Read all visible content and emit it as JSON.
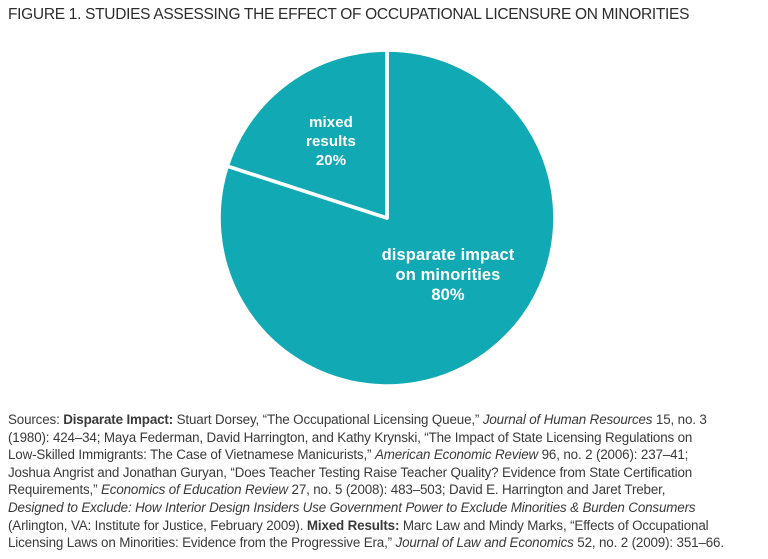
{
  "figure": {
    "title": "FIGURE 1. STUDIES ASSESSING THE EFFECT OF OCCUPATIONAL LICENSURE ON MINORITIES"
  },
  "chart_data": {
    "type": "pie",
    "title": "FIGURE 1. STUDIES ASSESSING THE EFFECT OF OCCUPATIONAL LICENSURE ON MINORITIES",
    "units": "percent of studies",
    "start_angle_deg_from_top": 0,
    "direction": "clockwise",
    "legend": "none",
    "data_labels_position": "inside",
    "data_label_color": "#ffffff",
    "divider_color": "#ffffff",
    "divider_width": 3.6,
    "radius_px": 168,
    "slices": [
      {
        "label": "disparate impact on minorities",
        "value": 80,
        "percent_label": "80%",
        "label_lines": [
          "disparate impact",
          "on minorities",
          "80%"
        ],
        "color": "#11aab4"
      },
      {
        "label": "mixed results",
        "value": 20,
        "percent_label": "20%",
        "label_lines": [
          "mixed",
          "results",
          "20%"
        ],
        "color": "#11aab4"
      }
    ]
  },
  "sources": {
    "lines": [
      [
        {
          "t": "Sources: "
        },
        {
          "t": "Disparate Impact:",
          "b": true
        },
        {
          "t": " Stuart Dorsey, “The Occupational Licensing Queue,” "
        },
        {
          "t": "Journal of Human Resources",
          "i": true
        },
        {
          "t": " 15, no. 3"
        }
      ],
      [
        {
          "t": "(1980): 424–34; Maya Federman, David Harrington, and Kathy Krynski, “The Impact of State Licensing Regulations on"
        }
      ],
      [
        {
          "t": "Low-Skilled Immigrants: The Case of Vietnamese Manicurists,” "
        },
        {
          "t": "American Economic Review",
          "i": true
        },
        {
          "t": " 96, no. 2 (2006): 237–41;"
        }
      ],
      [
        {
          "t": "Joshua Angrist and Jonathan Guryan, “Does Teacher Testing Raise Teacher Quality? Evidence from State Certification"
        }
      ],
      [
        {
          "t": "Requirements,” "
        },
        {
          "t": "Economics of Education Review",
          "i": true
        },
        {
          "t": " 27, no. 5 (2008): 483–503; David E. Harrington and Jaret Treber,"
        }
      ],
      [
        {
          "t": "Designed to Exclude: How Interior Design Insiders Use Government Power to Exclude Minorities & Burden Consumers",
          "i": true
        }
      ],
      [
        {
          "t": "(Arlington, VA: Institute for Justice, February 2009). "
        },
        {
          "t": "Mixed Results:",
          "b": true
        },
        {
          "t": " Marc Law and Mindy Marks, “Effects of Occupational"
        }
      ],
      [
        {
          "t": "Licensing Laws on Minorities: Evidence from the Progressive Era,” "
        },
        {
          "t": "Journal of Law and Economics",
          "i": true
        },
        {
          "t": " 52, no. 2 (2009): 351–66."
        }
      ]
    ]
  },
  "colors": {
    "background": "#ffffff",
    "title_text": "#2d2d2d",
    "body_text": "#3a3a3a",
    "pie_fill": "#11aab4",
    "pie_divider": "#ffffff",
    "pie_label_text": "#ffffff"
  }
}
